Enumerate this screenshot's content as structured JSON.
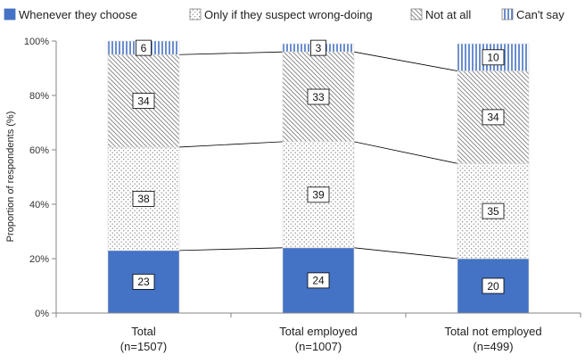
{
  "chart_data": {
    "type": "bar",
    "stacked": true,
    "categories": [
      "Total\n(n=1507)",
      "Total employed\n(n=1007)",
      "Total not employed\n(n=499)"
    ],
    "series": [
      {
        "name": "Whenever they choose",
        "values": [
          23,
          24,
          20
        ],
        "color": "#4472c4",
        "pattern": "solid"
      },
      {
        "name": "Only if they suspect wrong-doing",
        "values": [
          38,
          39,
          35
        ],
        "color": "#7f7f7f",
        "pattern": "dots"
      },
      {
        "name": "Not at all",
        "values": [
          34,
          33,
          34
        ],
        "color": "#7f7f7f",
        "pattern": "diagonal"
      },
      {
        "name": "Can't say",
        "values": [
          6,
          3,
          10
        ],
        "color": "#4472c4",
        "pattern": "vertical"
      }
    ],
    "ylabel": "Proportion of respondents (%)",
    "ylim": [
      0,
      100
    ],
    "yticks": [
      "0%",
      "20%",
      "40%",
      "60%",
      "80%",
      "100%"
    ],
    "legend_position": "top",
    "series_lines": true,
    "grid": false
  }
}
